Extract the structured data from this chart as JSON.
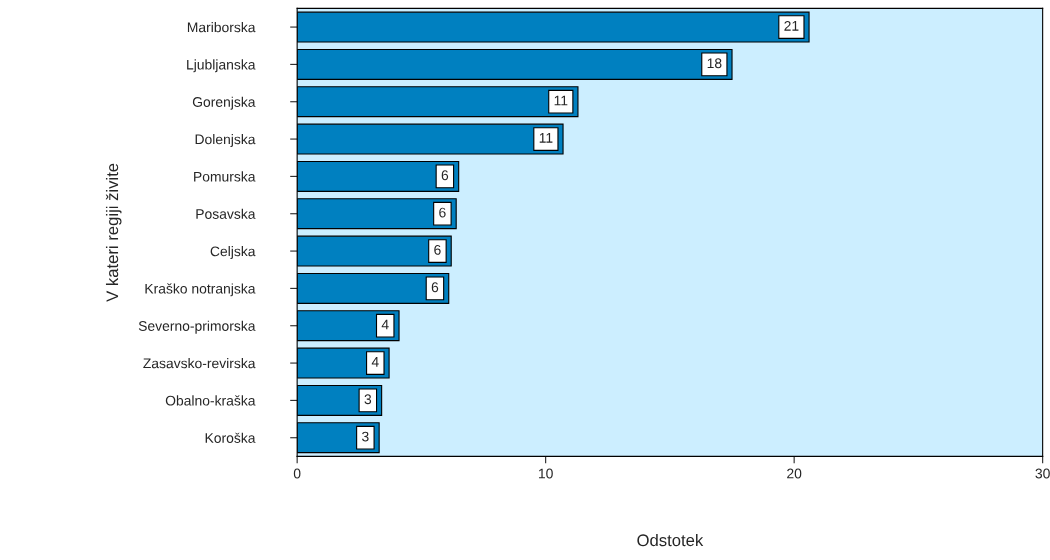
{
  "chart_data": {
    "type": "bar",
    "orientation": "horizontal",
    "categories": [
      "Mariborska",
      "Ljubljanska",
      "Gorenjska",
      "Dolenjska",
      "Pomurska",
      "Posavska",
      "Celjska",
      "Kraško notranjska",
      "Severno-primorska",
      "Zasavsko-revirska",
      "Obalno-kraška",
      "Koroška"
    ],
    "values": [
      20.6,
      17.5,
      11.3,
      10.7,
      6.5,
      6.4,
      6.2,
      6.1,
      4.1,
      3.7,
      3.4,
      3.3
    ],
    "value_labels": [
      "21",
      "18",
      "11",
      "11",
      "6",
      "6",
      "6",
      "6",
      "4",
      "4",
      "3",
      "3"
    ],
    "color": "#0080c0",
    "xlim": [
      0,
      30
    ],
    "xticks": [
      0,
      10,
      20,
      30
    ],
    "xlabel": "Odstotek",
    "ylabel": "V kateri regiji živite",
    "grid": false,
    "legend": false
  }
}
